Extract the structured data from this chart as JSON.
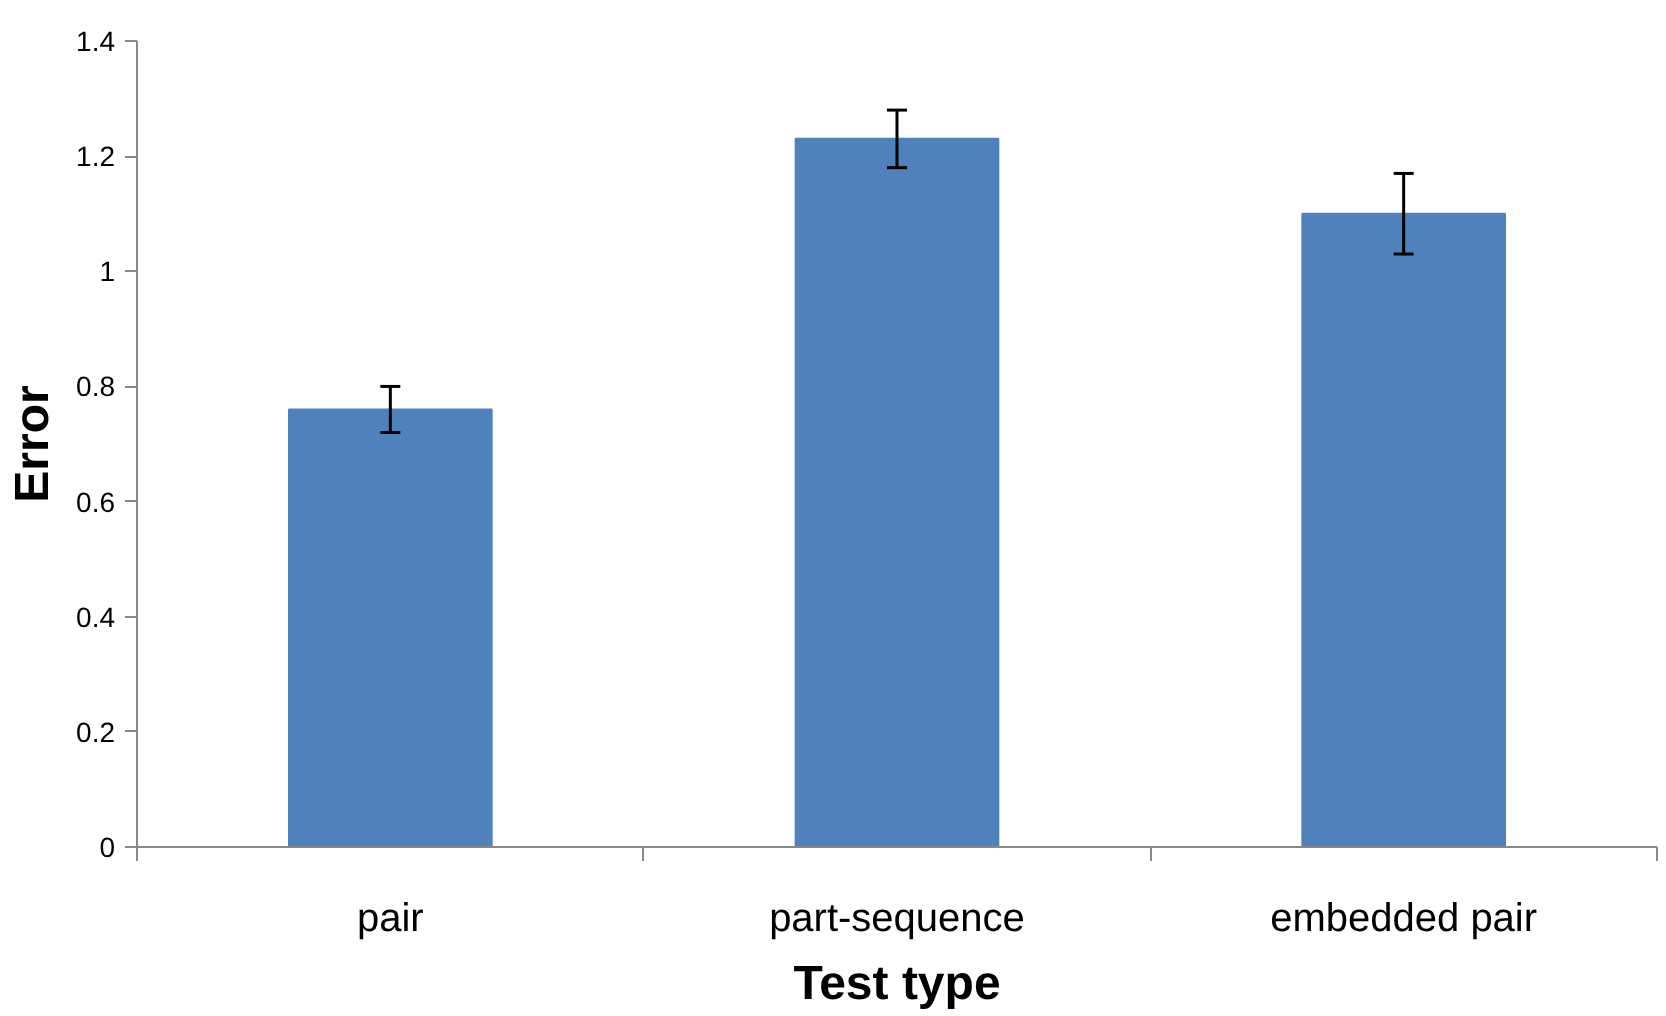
{
  "chart_data": {
    "type": "bar",
    "xlabel": "Test type",
    "ylabel": "Error",
    "categories": [
      "pair",
      "part-sequence",
      "embedded pair"
    ],
    "values": [
      0.76,
      1.23,
      1.1
    ],
    "errors": [
      0.04,
      0.05,
      0.07
    ],
    "color": "#4f81bd",
    "ylim": [
      0,
      1.4
    ],
    "yticks": [
      0,
      0.2,
      0.4,
      0.6,
      0.8,
      1,
      1.2,
      1.4
    ],
    "grid": false
  }
}
